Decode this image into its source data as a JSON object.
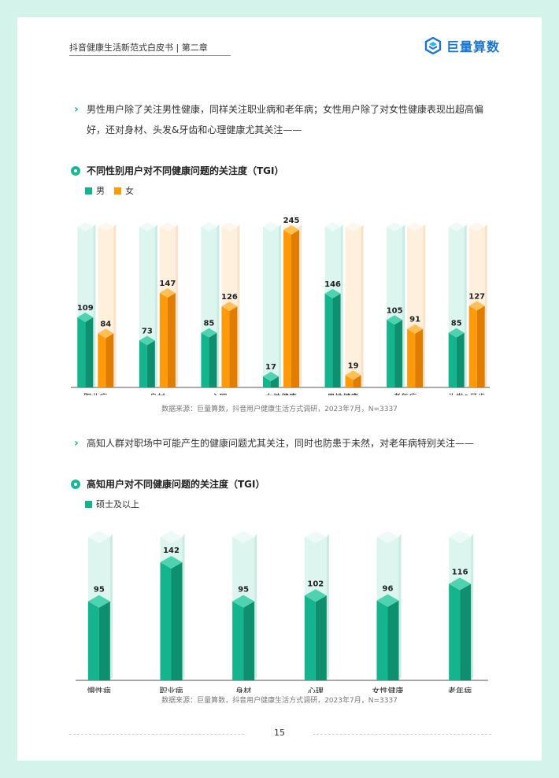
{
  "header": {
    "title": "抖音健康生活新范式白皮书 | 第二章",
    "brand": "巨量算数"
  },
  "section1": {
    "bullet_line1": "男性用户除了关注男性健康，同样关注职业病和老年病；女性用户除了对女性健康表现出超高偏",
    "bullet_line2": "好，还对身材、头发&牙齿和心理健康尤其关注——",
    "chart_title": "不同性别用户对不同健康问题的关注度（TGI）",
    "source": "数据来源：巨量算数，抖音用户健康生活方式调研，2023年7月，N=3337"
  },
  "section2": {
    "bullet": "高知人群对职场中可能产生的健康问题尤其关注，同时也防患于未然，对老年病特别关注——",
    "chart_title": "高知用户对不同健康问题的关注度（TGI）",
    "source": "数据来源：巨量算数，抖音用户健康生活方式调研，2023年7月，N=3337"
  },
  "page_number": "15",
  "chart_data": [
    {
      "type": "bar",
      "title": "不同性别用户对不同健康问题的关注度（TGI）",
      "categories": [
        "职业病",
        "身材",
        "心理",
        "女性健康",
        "男性健康",
        "老年病",
        "头发&牙齿"
      ],
      "series": [
        {
          "name": "男",
          "color": "#14b48e",
          "values": [
            109,
            73,
            85,
            17,
            146,
            105,
            85
          ]
        },
        {
          "name": "女",
          "color": "#ff9a0a",
          "values": [
            84,
            147,
            126,
            245,
            19,
            91,
            127
          ]
        }
      ],
      "ylim": [
        0,
        245
      ],
      "legend": "top-left",
      "grid": false
    },
    {
      "type": "bar",
      "title": "高知用户对不同健康问题的关注度（TGI）",
      "categories": [
        "慢性病",
        "职业病",
        "身材",
        "心理",
        "女性健康",
        "老年病"
      ],
      "series": [
        {
          "name": "硕士及以上",
          "color": "#14b48e",
          "values": [
            95,
            142,
            95,
            102,
            96,
            116
          ]
        }
      ],
      "ylim": [
        0,
        142
      ],
      "legend": "top-left",
      "grid": false
    }
  ]
}
